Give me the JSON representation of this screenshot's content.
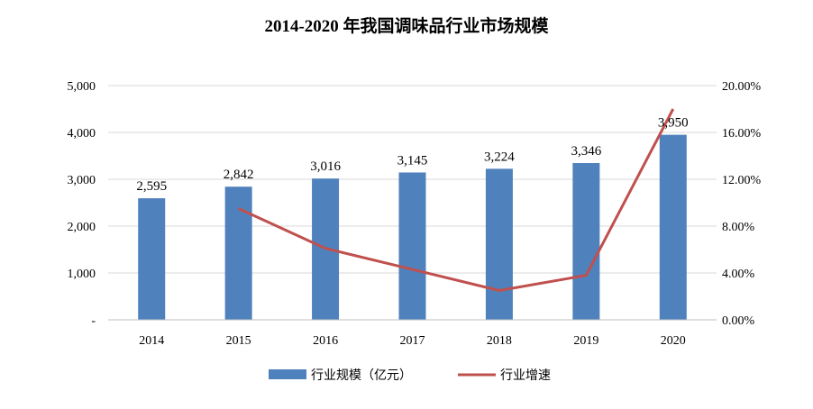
{
  "chart_data": {
    "type": "bar",
    "title": "2014-2020 年我国调味品行业市场规模",
    "categories": [
      "2014",
      "2015",
      "2016",
      "2017",
      "2018",
      "2019",
      "2020"
    ],
    "series": [
      {
        "name": "行业规模（亿元）",
        "type": "bar",
        "axis": "left",
        "color": "#4f81bd",
        "values": [
          2595,
          2842,
          3016,
          3145,
          3224,
          3346,
          3950
        ],
        "labels": [
          "2,595",
          "2,842",
          "3,016",
          "3,145",
          "3,224",
          "3,346",
          "3,950"
        ]
      },
      {
        "name": "行业增速",
        "type": "line",
        "axis": "right",
        "color": "#c0504d",
        "values": [
          null,
          9.5,
          6.1,
          4.3,
          2.5,
          3.8,
          18.0
        ]
      }
    ],
    "y_left": {
      "range": [
        0,
        5000
      ],
      "ticks": [
        0,
        1000,
        2000,
        3000,
        4000,
        5000
      ],
      "tick_labels": [
        "-",
        "1,000",
        "2,000",
        "3,000",
        "4,000",
        "5,000"
      ]
    },
    "y_right": {
      "range": [
        0,
        20
      ],
      "ticks": [
        0,
        4,
        8,
        12,
        16,
        20
      ],
      "tick_labels": [
        "0.00%",
        "4.00%",
        "8.00%",
        "12.00%",
        "16.00%",
        "20.00%"
      ]
    },
    "grid": true,
    "legend_position": "bottom"
  }
}
